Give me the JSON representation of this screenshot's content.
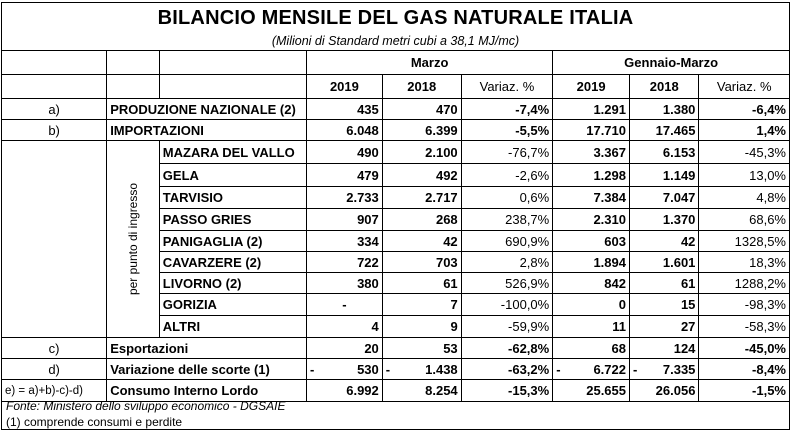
{
  "title": "BILANCIO MENSILE DEL GAS NATURALE ITALIA",
  "subtitle": "(Milioni di Standard metri cubi a 38,1 MJ/mc)",
  "headers": {
    "period1": "Marzo",
    "period2": "Gennaio-Marzo",
    "year_a": "2019",
    "year_b": "2018",
    "variation": "Variaz. %"
  },
  "vertical_label": "per punto di ingresso",
  "rows": {
    "produzione": {
      "code": "a)",
      "label": "PRODUZIONE NAZIONALE (2)",
      "m19": "435",
      "m18": "470",
      "mvar": "-7,4%",
      "g19": "1.291",
      "g18": "1.380",
      "gvar": "-6,4%"
    },
    "importazioni": {
      "code": "b)",
      "label": "IMPORTAZIONI",
      "m19": "6.048",
      "m18": "6.399",
      "mvar": "-5,5%",
      "g19": "17.710",
      "g18": "17.465",
      "gvar": "1,4%"
    },
    "mazara": {
      "label": "MAZARA DEL VALLO",
      "m19": "490",
      "m18": "2.100",
      "mvar": "-76,7%",
      "g19": "3.367",
      "g18": "6.153",
      "gvar": "-45,3%"
    },
    "gela": {
      "label": "GELA",
      "m19": "479",
      "m18": "492",
      "mvar": "-2,6%",
      "g19": "1.298",
      "g18": "1.149",
      "gvar": "13,0%"
    },
    "tarvisio": {
      "label": "TARVISIO",
      "m19": "2.733",
      "m18": "2.717",
      "mvar": "0,6%",
      "g19": "7.384",
      "g18": "7.047",
      "gvar": "4,8%"
    },
    "passo_gries": {
      "label": "PASSO GRIES",
      "m19": "907",
      "m18": "268",
      "mvar": "238,7%",
      "g19": "2.310",
      "g18": "1.370",
      "gvar": "68,6%"
    },
    "panigaglia": {
      "label": "PANIGAGLIA (2)",
      "m19": "334",
      "m18": "42",
      "mvar": "690,9%",
      "g19": "603",
      "g18": "42",
      "gvar": "1328,5%"
    },
    "cavarzere": {
      "label": "CAVARZERE (2)",
      "m19": "722",
      "m18": "703",
      "mvar": "2,8%",
      "g19": "1.894",
      "g18": "1.601",
      "gvar": "18,3%"
    },
    "livorno": {
      "label": "LIVORNO (2)",
      "m19": "380",
      "m18": "61",
      "mvar": "526,9%",
      "g19": "842",
      "g18": "61",
      "gvar": "1288,2%"
    },
    "gorizia": {
      "label": "GORIZIA",
      "m19": "-",
      "m18": "7",
      "mvar": "-100,0%",
      "g19": "0",
      "g18": "15",
      "gvar": "-98,3%"
    },
    "altri": {
      "label": "ALTRI",
      "m19": "4",
      "m18": "9",
      "mvar": "-59,9%",
      "g19": "11",
      "g18": "27",
      "gvar": "-58,3%"
    },
    "esportazioni": {
      "code": "c)",
      "label": "Esportazioni",
      "m19": "20",
      "m18": "53",
      "mvar": "-62,8%",
      "g19": "68",
      "g18": "124",
      "gvar": "-45,0%"
    },
    "scorte": {
      "code": "d)",
      "label": "Variazione delle scorte (1)",
      "sign": "-",
      "m19": "530",
      "m18": "1.438",
      "mvar": "-63,2%",
      "g19": "6.722",
      "g18": "7.335",
      "gvar": "-8,4%"
    },
    "consumo": {
      "code": "e) = a)+b)-c)-d)",
      "label": "Consumo Interno Lordo",
      "m19": "6.992",
      "m18": "8.254",
      "mvar": "-15,3%",
      "g19": "25.655",
      "g18": "26.056",
      "gvar": "-1,5%"
    }
  },
  "footnotes": {
    "source": "Fonte: Ministero dello sviluppo economico - DGSAIE",
    "note1": "(1) comprende consumi e perdite"
  }
}
